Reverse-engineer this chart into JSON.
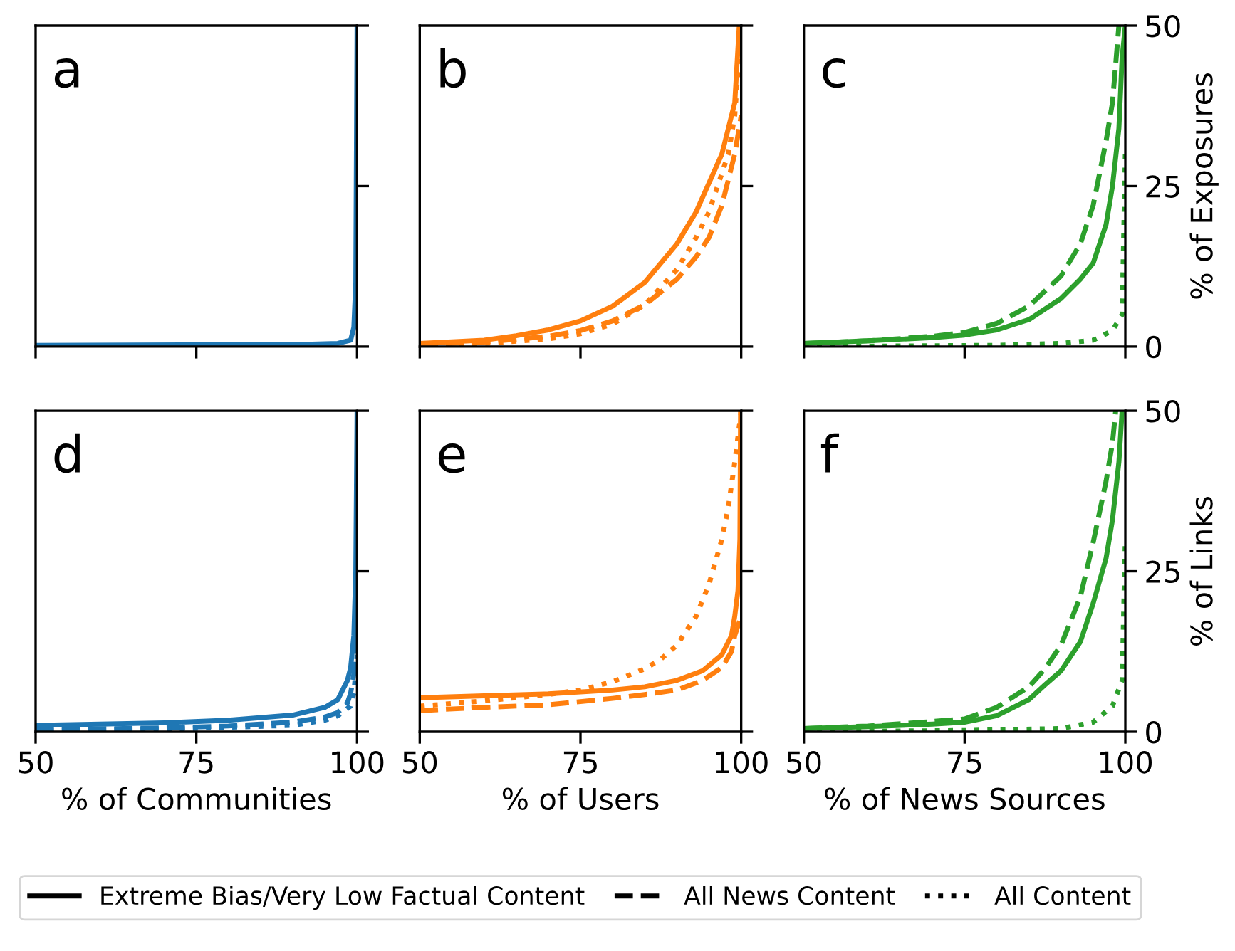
{
  "chart_data": [
    {
      "type": "line",
      "annotations": [
        "a"
      ],
      "xlim": [
        50,
        100
      ],
      "ylim": [
        0,
        50
      ],
      "xticks": [
        50,
        75,
        100
      ],
      "yticks": [
        0,
        25,
        50
      ],
      "tick_labels": false,
      "series": [
        {
          "color": "#1f77b4",
          "line_style": "solid",
          "x": [
            50,
            90,
            97,
            99,
            99.5,
            99.8,
            100
          ],
          "values": [
            0.2,
            0.3,
            0.5,
            1,
            3,
            10,
            50
          ]
        }
      ]
    },
    {
      "type": "line",
      "annotations": [
        "b",
        "Extreme Bias/Very Low Factual Content",
        "All News Content",
        "All Content"
      ],
      "xlim": [
        50,
        100
      ],
      "ylim": [
        0,
        50
      ],
      "xticks": [
        50,
        75,
        100
      ],
      "yticks": [
        0,
        25,
        50
      ],
      "tick_labels": false,
      "series": [
        {
          "color": "#ff7f0e",
          "line_style": "solid",
          "x": [
            50,
            60,
            65,
            70,
            75,
            80,
            85,
            90,
            93,
            95,
            97,
            98,
            99,
            99.7
          ],
          "values": [
            0.5,
            1,
            1.7,
            2.6,
            4,
            6.3,
            10,
            16,
            21,
            25.5,
            30,
            34,
            38,
            50
          ]
        },
        {
          "color": "#ff7f0e",
          "line_style": "dashed",
          "x": [
            50,
            60,
            70,
            75,
            80,
            85,
            90,
            93,
            95,
            97,
            98,
            99,
            100
          ],
          "values": [
            0.3,
            0.7,
            1.6,
            2.5,
            4,
            6.5,
            10.5,
            14,
            17,
            22,
            26,
            30,
            36
          ]
        },
        {
          "color": "#ff7f0e",
          "line_style": "dotted",
          "x": [
            50,
            60,
            70,
            75,
            80,
            85,
            90,
            93,
            95,
            97,
            98,
            99,
            100
          ],
          "values": [
            0.2,
            0.5,
            1.2,
            2,
            3.5,
            6.5,
            12,
            17,
            21,
            27,
            30,
            36,
            50
          ]
        }
      ]
    },
    {
      "type": "line",
      "annotations": [
        "c"
      ],
      "xlim": [
        50,
        100
      ],
      "ylim": [
        0,
        50
      ],
      "xticks": [
        50,
        75,
        100
      ],
      "yticks": [
        0,
        25,
        50
      ],
      "tick_labels": "y",
      "ylabel": "% of Exposures",
      "series": [
        {
          "color": "#2ca02c",
          "line_style": "solid",
          "x": [
            50,
            60,
            70,
            75,
            80,
            85,
            90,
            93,
            95,
            97,
            98,
            99,
            99.5,
            100
          ],
          "values": [
            0.5,
            0.9,
            1.4,
            1.8,
            2.6,
            4.2,
            7.5,
            10.5,
            13,
            19,
            25,
            34,
            45,
            50
          ]
        },
        {
          "color": "#2ca02c",
          "line_style": "dashed",
          "x": [
            50,
            60,
            70,
            75,
            80,
            85,
            90,
            93,
            95,
            97,
            98,
            99
          ],
          "values": [
            0.5,
            0.9,
            1.6,
            2.2,
            3.6,
            6.3,
            11,
            16,
            22,
            32,
            38,
            50
          ]
        },
        {
          "color": "#2ca02c",
          "line_style": "dotted",
          "x": [
            50,
            80,
            90,
            95,
            98,
            99.5,
            100
          ],
          "values": [
            0,
            0.2,
            0.5,
            1,
            2.5,
            5,
            30
          ]
        }
      ]
    },
    {
      "type": "line",
      "annotations": [
        "d"
      ],
      "xlim": [
        50,
        100
      ],
      "ylim": [
        0,
        50
      ],
      "xticks": [
        50,
        75,
        100
      ],
      "yticks": [
        0,
        25,
        50
      ],
      "tick_labels": "x",
      "xlabel": "% of Communities",
      "series": [
        {
          "color": "#1f77b4",
          "line_style": "solid",
          "x": [
            50,
            60,
            70,
            80,
            90,
            95,
            97,
            98.5,
            99,
            99.5,
            99.8,
            100
          ],
          "values": [
            1,
            1.2,
            1.4,
            1.8,
            2.6,
            3.8,
            5,
            8,
            10,
            15,
            25,
            50
          ]
        },
        {
          "color": "#1f77b4",
          "line_style": "dashed",
          "x": [
            50,
            70,
            80,
            90,
            95,
            97,
            98.5,
            99,
            99.5,
            100
          ],
          "values": [
            0.3,
            0.6,
            0.9,
            1.5,
            2.3,
            3,
            4.5,
            6,
            9,
            15
          ]
        },
        {
          "color": "#1f77b4",
          "line_style": "dotted",
          "x": [
            50,
            70,
            80,
            90,
            95,
            97,
            99,
            99.5,
            100
          ],
          "values": [
            0.2,
            0.4,
            0.7,
            1,
            1.8,
            2.5,
            4,
            6,
            12
          ]
        }
      ]
    },
    {
      "type": "line",
      "annotations": [
        "e"
      ],
      "xlim": [
        50,
        100
      ],
      "ylim": [
        0,
        50
      ],
      "xticks": [
        50,
        75,
        100
      ],
      "yticks": [
        0,
        25,
        50
      ],
      "tick_labels": "x",
      "xlabel": "% of Users",
      "series": [
        {
          "color": "#ff7f0e",
          "line_style": "solid",
          "x": [
            50,
            60,
            70,
            80,
            85,
            90,
            94,
            97,
            98.5,
            99,
            99.5,
            99.8,
            99.9
          ],
          "values": [
            5.3,
            5.6,
            5.9,
            6.5,
            7,
            8,
            9.5,
            12,
            15,
            18,
            22,
            30,
            50
          ]
        },
        {
          "color": "#ff7f0e",
          "line_style": "dashed",
          "x": [
            50,
            60,
            70,
            80,
            85,
            90,
            94,
            97,
            98.5,
            99,
            100
          ],
          "values": [
            3.3,
            3.8,
            4.2,
            5.2,
            5.8,
            6.5,
            8,
            10,
            12.5,
            15,
            18
          ]
        },
        {
          "color": "#ff7f0e",
          "line_style": "dotted",
          "x": [
            50,
            60,
            70,
            75,
            80,
            85,
            87.5,
            90,
            93,
            95,
            97,
            98,
            99,
            100
          ],
          "values": [
            4,
            4.8,
            5.8,
            6.5,
            7.8,
            9.8,
            11.3,
            13.5,
            18,
            23,
            30,
            35,
            42,
            50
          ]
        }
      ]
    },
    {
      "type": "line",
      "annotations": [
        "f"
      ],
      "xlim": [
        50,
        100
      ],
      "ylim": [
        0,
        50
      ],
      "xticks": [
        50,
        75,
        100
      ],
      "yticks": [
        0,
        25,
        50
      ],
      "xlabel": "% of News Sources",
      "ylabel": "% of Links",
      "series": [
        {
          "color": "#2ca02c",
          "line_style": "solid",
          "x": [
            50,
            60,
            70,
            75,
            80,
            85,
            87.5,
            90,
            93,
            95,
            97,
            98,
            99,
            99.5
          ],
          "values": [
            0.5,
            0.8,
            1.2,
            1.5,
            2.5,
            5,
            7.3,
            9.5,
            14,
            20,
            27,
            33,
            42,
            50
          ]
        },
        {
          "color": "#2ca02c",
          "line_style": "dashed",
          "x": [
            50,
            60,
            70,
            75,
            80,
            85,
            87.5,
            90,
            93,
            95,
            97,
            98,
            98.5
          ],
          "values": [
            0.5,
            0.9,
            1.6,
            2,
            3.8,
            7,
            9.8,
            13.5,
            21,
            29.5,
            39,
            45,
            50
          ]
        },
        {
          "color": "#2ca02c",
          "line_style": "dotted",
          "x": [
            50,
            75,
            90,
            95,
            98,
            99.5,
            100
          ],
          "values": [
            0,
            0.2,
            0.5,
            1.5,
            4,
            8,
            30
          ]
        }
      ]
    }
  ]
}
